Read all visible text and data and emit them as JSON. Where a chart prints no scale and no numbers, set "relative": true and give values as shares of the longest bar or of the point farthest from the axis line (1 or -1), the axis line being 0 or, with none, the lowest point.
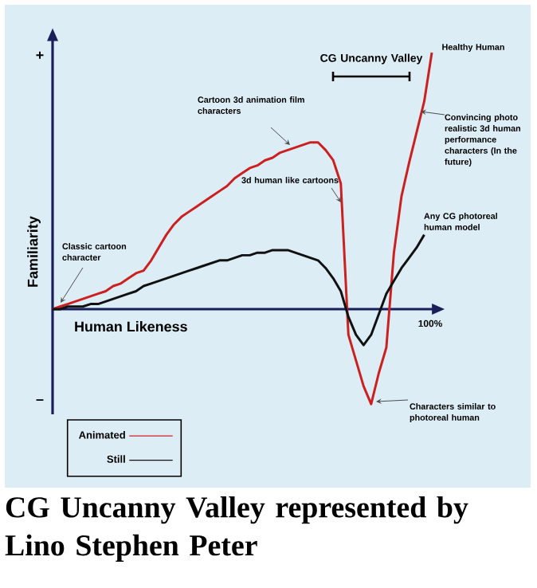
{
  "chart_data": {
    "type": "line",
    "relative": true,
    "xlabel": "Human Likeness",
    "ylabel": "Familiarity",
    "legend": "bottom left",
    "categories": [
      null,
      null,
      null,
      null,
      null,
      null,
      null,
      null,
      null,
      null,
      null,
      null,
      null,
      null,
      null,
      null,
      null,
      null,
      null,
      null,
      null,
      null,
      null,
      null,
      null,
      null,
      null,
      null,
      null,
      null,
      null,
      null,
      null,
      null,
      null,
      null,
      null,
      null,
      null,
      null,
      null,
      null,
      null,
      null,
      null,
      null,
      null,
      null,
      null,
      null,
      null
    ],
    "series": [
      {
        "name": "Animated",
        "color": "#cc2020",
        "values": [
          0,
          0.01,
          0.02,
          0.03,
          0.04,
          0.05,
          0.06,
          0.07,
          0.09,
          0.1,
          0.12,
          0.14,
          0.15,
          0.19,
          0.24,
          0.29,
          0.33,
          0.36,
          0.38,
          0.4,
          0.42,
          0.44,
          0.46,
          0.48,
          0.51,
          0.53,
          0.55,
          0.56,
          0.58,
          0.59,
          0.61,
          0.62,
          0.63,
          0.64,
          0.65,
          0.65,
          0.62,
          0.58,
          0.49,
          -0.1,
          -0.2,
          -0.3,
          -0.37,
          -0.25,
          -0.15,
          0.22,
          0.44,
          0.57,
          0.69,
          0.81,
          1.0
        ]
      },
      {
        "name": "Still",
        "color": "#111111",
        "values": [
          0,
          0,
          0.01,
          0.01,
          0.01,
          0.02,
          0.02,
          0.03,
          0.04,
          0.05,
          0.06,
          0.07,
          0.09,
          0.1,
          0.11,
          0.12,
          0.13,
          0.14,
          0.15,
          0.16,
          0.17,
          0.18,
          0.19,
          0.19,
          0.2,
          0.21,
          0.21,
          0.22,
          0.22,
          0.23,
          0.23,
          0.23,
          0.22,
          0.21,
          0.2,
          0.19,
          0.16,
          0.12,
          0.07,
          -0.03,
          -0.1,
          -0.14,
          -0.1,
          -0.02,
          0.06,
          0.11,
          0.16,
          0.2,
          0.24,
          0.29,
          null
        ]
      }
    ],
    "annotations": [
      "Classic cartoon character",
      "Cartoon 3d animation film characters",
      "3d human like cartoons",
      "Healthy Human",
      "Convincing photo realistic 3d human performance characters (In the future)",
      "Any CG photoreal human model",
      "Characters similar to photoreal human",
      "+",
      "–",
      "100%",
      "CG Uncanny Valley",
      "CG Uncanny Valley represented by Lino Stephen Peter"
    ]
  }
}
